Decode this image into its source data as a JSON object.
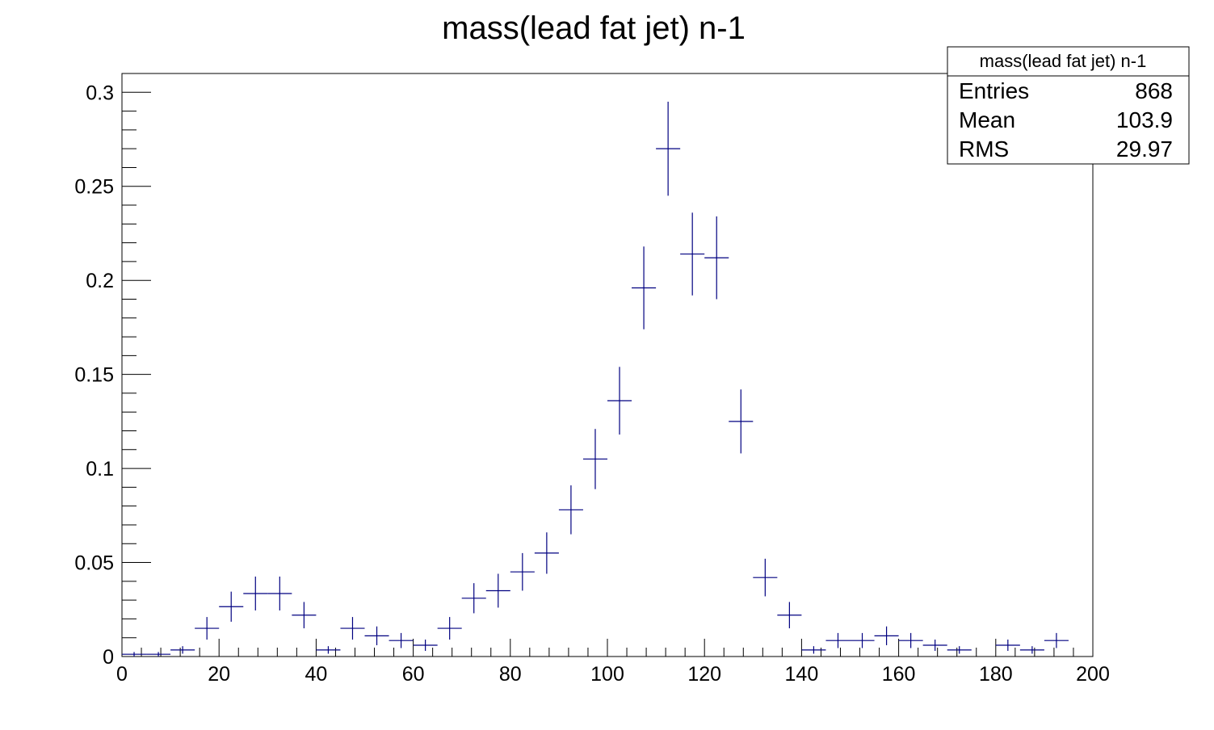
{
  "chart_data": {
    "type": "scatter",
    "title": "mass(lead fat jet) n-1",
    "xlabel": "",
    "ylabel": "",
    "xlim": [
      0,
      200
    ],
    "ylim": [
      0,
      0.31
    ],
    "grid": false,
    "x_ticks": [
      0,
      20,
      40,
      60,
      80,
      100,
      120,
      140,
      160,
      180,
      200
    ],
    "y_ticks": [
      0,
      0.05,
      0.1,
      0.15,
      0.2,
      0.25,
      0.3
    ],
    "x_tick_labels": [
      "0",
      "20",
      "40",
      "60",
      "80",
      "100",
      "120",
      "140",
      "160",
      "180",
      "200"
    ],
    "y_tick_labels": [
      "0",
      "0.05",
      "0.1",
      "0.15",
      "0.2",
      "0.25",
      "0.3"
    ],
    "bin_width": 5,
    "series": [
      {
        "color": "#000080",
        "x": [
          2.5,
          7.5,
          12.5,
          17.5,
          22.5,
          27.5,
          32.5,
          37.5,
          42.5,
          47.5,
          52.5,
          57.5,
          62.5,
          67.5,
          72.5,
          77.5,
          82.5,
          87.5,
          92.5,
          97.5,
          102.5,
          107.5,
          112.5,
          117.5,
          122.5,
          127.5,
          132.5,
          137.5,
          142.5,
          147.5,
          152.5,
          157.5,
          162.5,
          167.5,
          172.5,
          182.5,
          187.5,
          192.5
        ],
        "y": [
          0.0012,
          0.0012,
          0.0035,
          0.015,
          0.0265,
          0.0335,
          0.0335,
          0.022,
          0.0035,
          0.015,
          0.011,
          0.0085,
          0.006,
          0.015,
          0.031,
          0.035,
          0.045,
          0.055,
          0.078,
          0.105,
          0.136,
          0.196,
          0.27,
          0.214,
          0.212,
          0.125,
          0.042,
          0.022,
          0.0035,
          0.0085,
          0.0085,
          0.011,
          0.0085,
          0.006,
          0.0035,
          0.006,
          0.0035,
          0.0085
        ],
        "err": [
          0.0012,
          0.0012,
          0.002,
          0.006,
          0.008,
          0.009,
          0.009,
          0.007,
          0.002,
          0.006,
          0.005,
          0.004,
          0.003,
          0.006,
          0.008,
          0.009,
          0.01,
          0.011,
          0.013,
          0.016,
          0.018,
          0.022,
          0.025,
          0.022,
          0.022,
          0.017,
          0.01,
          0.007,
          0.002,
          0.004,
          0.004,
          0.005,
          0.004,
          0.003,
          0.002,
          0.003,
          0.002,
          0.004
        ]
      }
    ]
  },
  "stats_box": {
    "title": "mass(lead fat jet) n-1",
    "rows": [
      {
        "label": "Entries",
        "value": "868"
      },
      {
        "label": "Mean",
        "value": "103.9"
      },
      {
        "label": "RMS",
        "value": "29.97"
      }
    ]
  }
}
